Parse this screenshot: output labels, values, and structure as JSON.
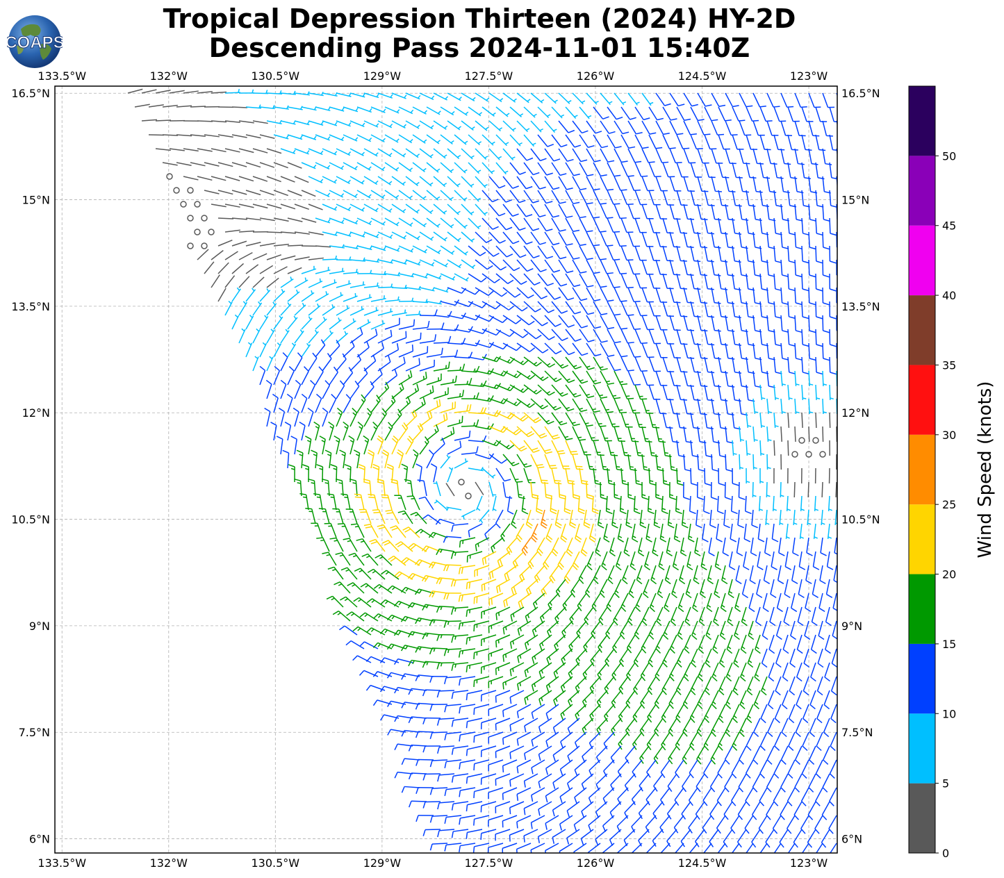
{
  "title": {
    "line1": "Tropical Depression Thirteen (2024) HY-2D",
    "line2": "Descending Pass 2024-11-01 15:40Z"
  },
  "logo": {
    "text": "COAPS",
    "icon": "globe-icon"
  },
  "map": {
    "lon_range": [
      -133.6,
      -122.6
    ],
    "lat_range": [
      5.8,
      16.6
    ],
    "grid": true,
    "x_ticks": [
      "133.5°W",
      "132°W",
      "130.5°W",
      "129°W",
      "127.5°W",
      "126°W",
      "124.5°W",
      "123°W"
    ],
    "x_tick_values": [
      -133.5,
      -132,
      -130.5,
      -129,
      -127.5,
      -126,
      -124.5,
      -123
    ],
    "y_ticks": [
      "6°N",
      "7.5°N",
      "9°N",
      "10.5°N",
      "12°N",
      "13.5°N",
      "15°N",
      "16.5°N"
    ],
    "y_tick_values": [
      6,
      7.5,
      9,
      10.5,
      12,
      13.5,
      15,
      16.5
    ],
    "storm_center": {
      "lon": -127.8,
      "lat": 10.9
    },
    "calm_center": {
      "lon": -123.0,
      "lat": 11.5
    }
  },
  "colorbar": {
    "label": "Wind Speed (knots)",
    "ticks": [
      "0",
      "5",
      "10",
      "15",
      "20",
      "25",
      "30",
      "35",
      "40",
      "45",
      "50"
    ],
    "bins": [
      {
        "min": 0,
        "max": 5,
        "color": "#595959"
      },
      {
        "min": 5,
        "max": 10,
        "color": "#00bfff"
      },
      {
        "min": 10,
        "max": 15,
        "color": "#0040ff"
      },
      {
        "min": 15,
        "max": 20,
        "color": "#009900"
      },
      {
        "min": 20,
        "max": 25,
        "color": "#ffd500"
      },
      {
        "min": 25,
        "max": 30,
        "color": "#ff8c00"
      },
      {
        "min": 30,
        "max": 35,
        "color": "#ff1010"
      },
      {
        "min": 35,
        "max": 40,
        "color": "#7f3d2a"
      },
      {
        "min": 40,
        "max": 45,
        "color": "#f000f0"
      },
      {
        "min": 45,
        "max": 50,
        "color": "#8a00b8"
      },
      {
        "min": 50,
        "max": 55,
        "color": "#2b005e"
      }
    ]
  }
}
